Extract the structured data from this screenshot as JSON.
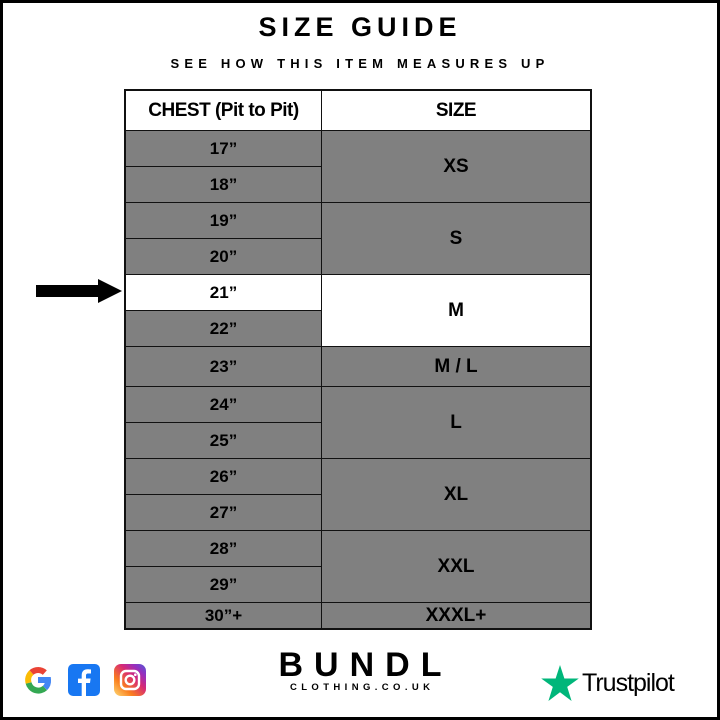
{
  "title": "SIZE GUIDE",
  "subtitle": "SEE HOW THIS ITEM MEASURES UP",
  "table": {
    "headers": [
      "CHEST (Pit to Pit)",
      "SIZE"
    ],
    "chest": [
      "17”",
      "18”",
      "19”",
      "20”",
      "21”",
      "22”",
      "23”",
      "24”",
      "25”",
      "26”",
      "27”",
      "28”",
      "29”",
      "30”+"
    ],
    "sizes": [
      "XS",
      "S",
      "M",
      "M / L",
      "L",
      "XL",
      "XXL",
      "XXXL+"
    ],
    "highlighted_chest": "21”",
    "highlighted_size": "M"
  },
  "colors": {
    "row_fill": "#808080",
    "highlight": "#ffffff",
    "trustpilot_green": "#00b67a"
  },
  "footer": {
    "social_icons": [
      "google-icon",
      "facebook-icon",
      "instagram-icon"
    ],
    "brand": "BUNDL",
    "brand_sub": "CLOTHING.CO.UK",
    "trustpilot": "Trustpilot"
  }
}
